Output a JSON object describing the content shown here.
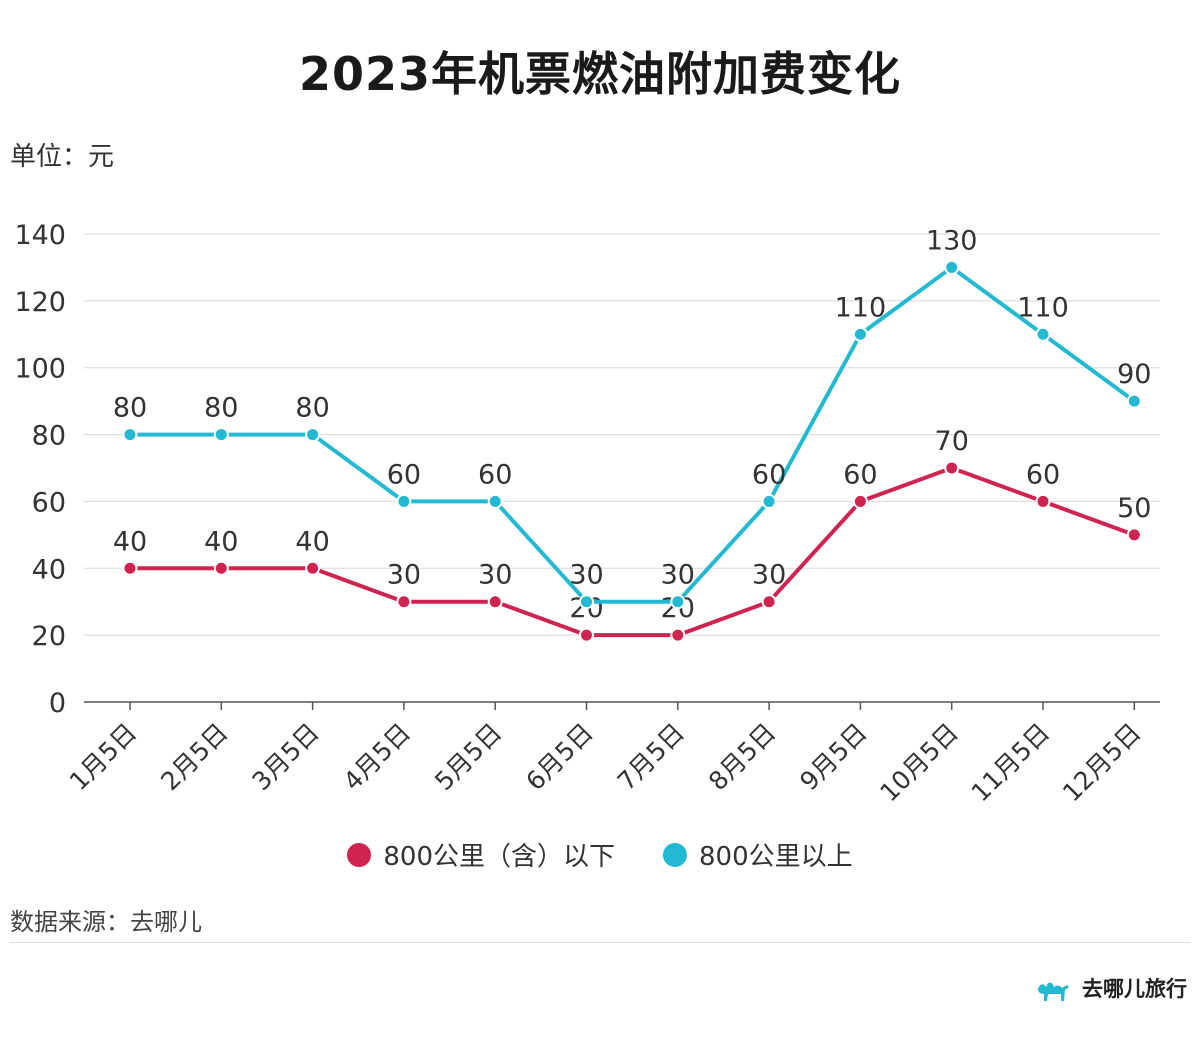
{
  "title": "2023年机票燃油附加费变化",
  "unit_label": "单位：元",
  "source_label": "数据来源：去哪儿",
  "brand": {
    "name": "去哪儿旅行",
    "icon": "camel-logo-icon"
  },
  "colors": {
    "red": "#cf2350",
    "cyan": "#23b9d3",
    "grid": "#d8d8d8",
    "axis": "#555555"
  },
  "chart_data": {
    "type": "line",
    "categories": [
      "1月5日",
      "2月5日",
      "3月5日",
      "4月5日",
      "5月5日",
      "6月5日",
      "7月5日",
      "8月5日",
      "9月5日",
      "10月5日",
      "11月5日",
      "12月5日"
    ],
    "series": [
      {
        "name": "800公里（含）以下",
        "color": "#cf2350",
        "values": [
          40,
          40,
          40,
          30,
          30,
          20,
          20,
          30,
          60,
          70,
          60,
          50
        ]
      },
      {
        "name": "800公里以上",
        "color": "#23b9d3",
        "values": [
          80,
          80,
          80,
          60,
          60,
          30,
          30,
          60,
          110,
          130,
          110,
          90
        ]
      }
    ],
    "yticks": [
      0,
      20,
      40,
      60,
      80,
      100,
      120,
      140
    ],
    "ylim": [
      0,
      140
    ],
    "grid": true,
    "legend": "bottom"
  }
}
